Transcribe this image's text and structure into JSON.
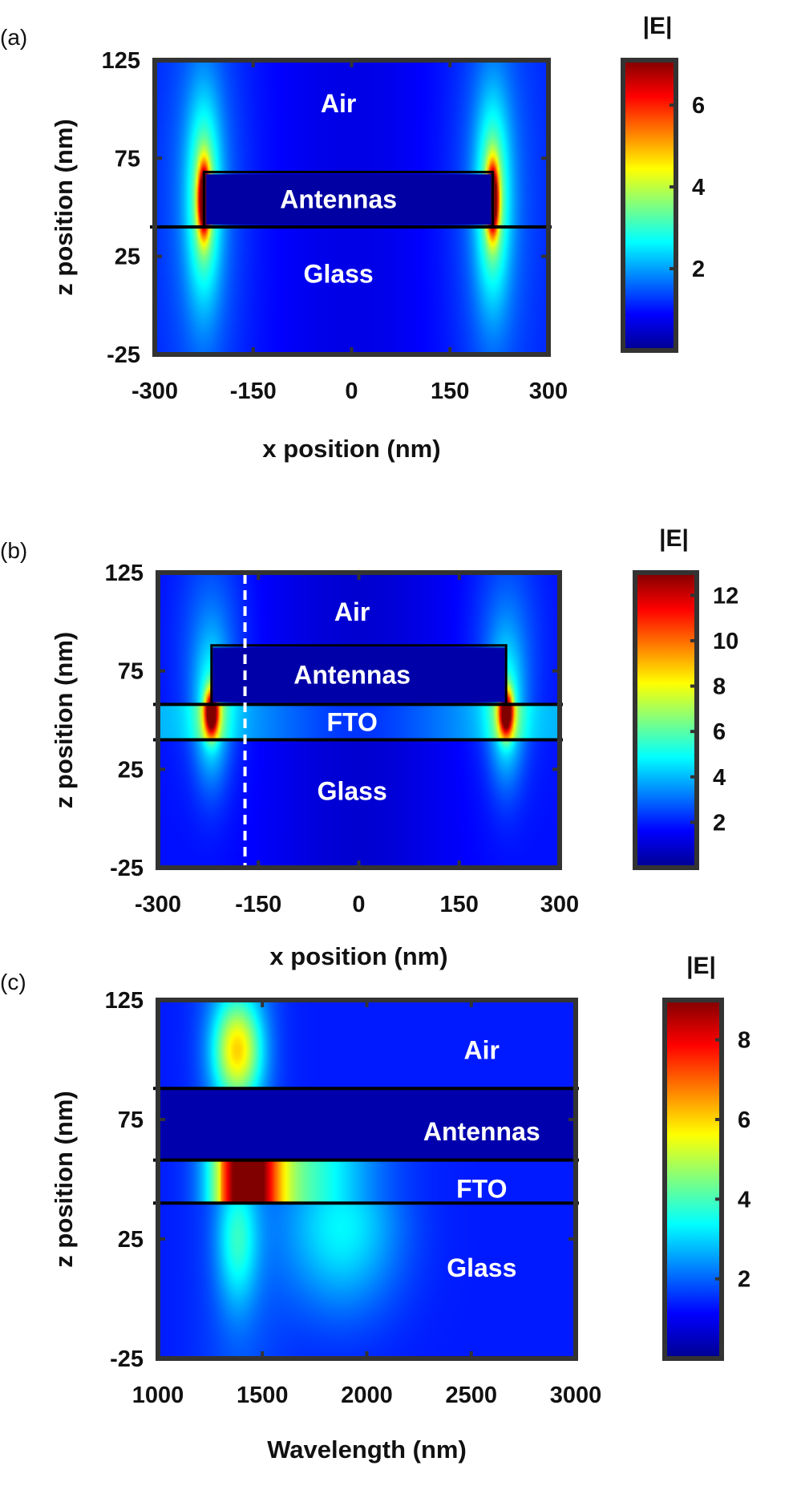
{
  "chart_data": [
    {
      "type": "heatmap",
      "panel_label": "(a)",
      "xlabel": "x position (nm)",
      "ylabel": "z position (nm)",
      "xlim": [
        -300,
        300
      ],
      "ylim": [
        -25,
        125
      ],
      "xticks": [
        -300,
        -150,
        0,
        150,
        300
      ],
      "yticks": [
        125,
        75,
        25,
        -25
      ],
      "colorbar": {
        "title": "|E|",
        "ticks": [
          6,
          4,
          2
        ],
        "min": 0,
        "max": 7.1
      },
      "layers": [
        {
          "name": "Antennas",
          "x_range": [
            -225,
            215
          ],
          "z_range": [
            40,
            68
          ]
        }
      ],
      "interfaces_z": [
        40
      ],
      "hotspots": [
        {
          "x": -225,
          "z": 54,
          "value": 7
        },
        {
          "x": 215,
          "z": 54,
          "value": 7
        }
      ],
      "region_labels": [
        {
          "text": "Air",
          "x": -20,
          "z": 103
        },
        {
          "text": "Antennas",
          "x": -20,
          "z": 54
        },
        {
          "text": "Glass",
          "x": -20,
          "z": 16
        }
      ],
      "dashed_line_x": null
    },
    {
      "type": "heatmap",
      "panel_label": "(b)",
      "xlabel": "x position (nm)",
      "ylabel": "z position (nm)",
      "xlim": [
        -300,
        300
      ],
      "ylim": [
        -25,
        125
      ],
      "xticks": [
        -300,
        -150,
        0,
        150,
        300
      ],
      "yticks": [
        125,
        75,
        25,
        -25
      ],
      "colorbar": {
        "title": "|E|",
        "ticks": [
          12,
          10,
          8,
          6,
          4,
          2
        ],
        "min": 0,
        "max": 13
      },
      "layers": [
        {
          "name": "Antennas",
          "x_range": [
            -220,
            220
          ],
          "z_range": [
            58,
            88
          ]
        },
        {
          "name": "FTO",
          "x_range": [
            -300,
            300
          ],
          "z_range": [
            40,
            58
          ]
        }
      ],
      "interfaces_z": [
        58,
        40
      ],
      "hotspots": [
        {
          "x": -220,
          "z": 54,
          "value": 12
        },
        {
          "x": 220,
          "z": 54,
          "value": 12
        }
      ],
      "region_labels": [
        {
          "text": "Air",
          "x": -10,
          "z": 105
        },
        {
          "text": "Antennas",
          "x": -10,
          "z": 73
        },
        {
          "text": "FTO",
          "x": -10,
          "z": 49
        },
        {
          "text": "Glass",
          "x": -10,
          "z": 14
        }
      ],
      "dashed_line_x": -170
    },
    {
      "type": "heatmap",
      "panel_label": "(c)",
      "xlabel": "Wavelength (nm)",
      "ylabel": "z position (nm)",
      "xlim": [
        1000,
        3000
      ],
      "ylim": [
        -25,
        125
      ],
      "xticks": [
        1000,
        1500,
        2000,
        2500,
        3000
      ],
      "yticks": [
        125,
        75,
        25,
        -25
      ],
      "colorbar": {
        "title": "|E|",
        "ticks": [
          8,
          6,
          4,
          2
        ],
        "min": 0,
        "max": 9
      },
      "layers": [
        {
          "name": "Antennas",
          "x_range": [
            1000,
            3000
          ],
          "z_range": [
            58,
            88
          ]
        },
        {
          "name": "FTO",
          "x_range": [
            1000,
            3000
          ],
          "z_range": [
            40,
            58
          ]
        }
      ],
      "interfaces_z": [
        88,
        58,
        40
      ],
      "hotspots": [
        {
          "x": 1420,
          "z": 49,
          "value": 9
        },
        {
          "x": 1420,
          "z": 104,
          "value": 4
        }
      ],
      "region_labels": [
        {
          "text": "Air",
          "x": 2550,
          "z": 104
        },
        {
          "text": "Antennas",
          "x": 2550,
          "z": 70
        },
        {
          "text": "FTO",
          "x": 2550,
          "z": 46
        },
        {
          "text": "Glass",
          "x": 2550,
          "z": 13
        }
      ],
      "dashed_line_x": null
    }
  ]
}
